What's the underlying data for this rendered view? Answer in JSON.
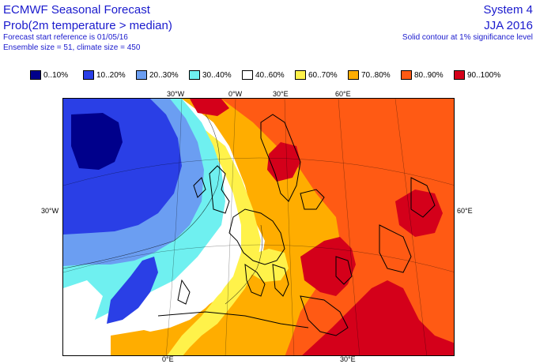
{
  "header": {
    "title": "ECMWF Seasonal Forecast",
    "subtitle": "Prob(2m temperature > median)",
    "forecast_ref": "Forecast start reference is 01/05/16",
    "ensemble": "Ensemble size = 51, climate size = 450",
    "system": "System 4",
    "period": "JJA 2016",
    "note": "Solid contour at 1% significance level"
  },
  "legend": [
    {
      "label": "0..10%",
      "color": "#00008b"
    },
    {
      "label": "10..20%",
      "color": "#2a3fe6"
    },
    {
      "label": "20..30%",
      "color": "#6b9ef2"
    },
    {
      "label": "30..40%",
      "color": "#6ff0f0"
    },
    {
      "label": "40..60%",
      "color": "#ffffff"
    },
    {
      "label": "60..70%",
      "color": "#fff24a"
    },
    {
      "label": "70..80%",
      "color": "#ffad00"
    },
    {
      "label": "80..90%",
      "color": "#ff5a14"
    },
    {
      "label": "90..100%",
      "color": "#d4001a"
    }
  ],
  "axes": {
    "top": [
      "30°W",
      "0°W",
      "30°E",
      "60°E"
    ],
    "left": [
      "30°W"
    ],
    "right": [
      "60°E"
    ],
    "bottom": [
      "0°E",
      "30°E"
    ]
  },
  "map": {
    "region": "Europe / North Atlantic",
    "field_colors": {
      "ocean_west": "#3f5bea",
      "ocean_cold": "#00008b",
      "neutral": "#ffffff",
      "warm": "#ffad00",
      "hot": "#ff5a14",
      "very_hot": "#d4001a"
    }
  }
}
